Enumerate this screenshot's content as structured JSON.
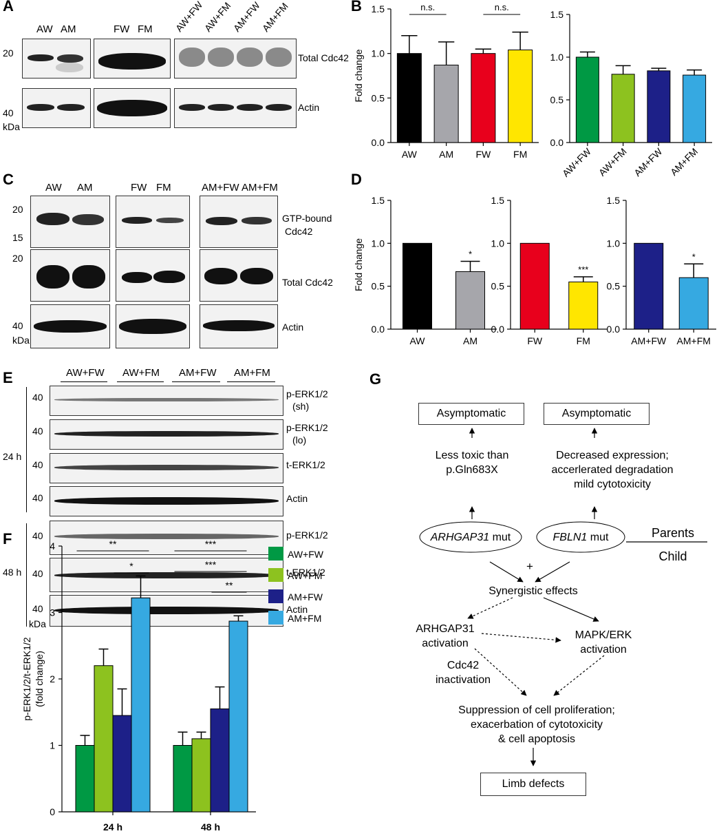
{
  "panels": {
    "a": "A",
    "b": "B",
    "c": "C",
    "d": "D",
    "e": "E",
    "f": "F",
    "g": "G"
  },
  "panel_a": {
    "lanes_1": [
      "AW",
      "AM"
    ],
    "lanes_2": [
      "FW",
      "FM"
    ],
    "lanes_3": [
      "AW+FW",
      "AW+FM",
      "AM+FW",
      "AM+FM"
    ],
    "mw_20": "20",
    "mw_40": "40",
    "kda": "kDa",
    "row_total": "Total Cdc42",
    "row_actin": "Actin"
  },
  "panel_c": {
    "lanes_1": [
      "AW",
      "AM"
    ],
    "lanes_2": [
      "FW",
      "FM"
    ],
    "lanes_3": [
      "AM+FW",
      "AM+FM"
    ],
    "mw_20a": "20",
    "mw_15": "15",
    "mw_20b": "20",
    "mw_40": "40",
    "kda": "kDa",
    "row_gtp_1": "GTP-bound",
    "row_gtp_2": "Cdc42",
    "row_total": "Total Cdc42",
    "row_actin": "Actin"
  },
  "panel_e": {
    "groups": [
      "AW+FW",
      "AW+FM",
      "AM+FW",
      "AM+FM"
    ],
    "time_24": "24 h",
    "time_48": "48 h",
    "mw": "40",
    "kda": "kDa",
    "rows_24": [
      "p-ERK1/2",
      "p-ERK1/2",
      "t-ERK1/2",
      "Actin"
    ],
    "rows_24_sub": [
      "(sh)",
      "(lo)",
      "",
      ""
    ],
    "rows_48": [
      "p-ERK1/2",
      "t-ERK1/2",
      "Actin"
    ]
  },
  "colors": {
    "AW": "#000000",
    "AM": "#a6a6ab",
    "FW": "#e8001c",
    "FM": "#ffe600",
    "AW+FW": "#009944",
    "AW+FM": "#8dc21f",
    "AM+FW": "#1d2088",
    "AM+FM": "#36a9e1"
  },
  "chart_data": [
    {
      "id": "B-left",
      "type": "bar",
      "categories": [
        "AW",
        "AM",
        "FW",
        "FM"
      ],
      "values": [
        1.0,
        0.87,
        1.0,
        1.04
      ],
      "errors": [
        0.2,
        0.26,
        0.05,
        0.2
      ],
      "ylabel": "Fold change",
      "ylim": [
        0,
        1.5
      ],
      "yticks": [
        "0.0",
        "0.5",
        "1.0",
        "1.5"
      ],
      "annotations": [
        "n.s.",
        "n.s."
      ]
    },
    {
      "id": "B-right",
      "type": "bar",
      "categories": [
        "AW+FW",
        "AW+FM",
        "AM+FW",
        "AM+FM"
      ],
      "values": [
        1.0,
        0.8,
        0.84,
        0.79
      ],
      "errors": [
        0.06,
        0.1,
        0.03,
        0.06
      ],
      "ylim": [
        0,
        1.5
      ],
      "yticks": [
        "0.0",
        "0.5",
        "1.0",
        "1.5"
      ]
    },
    {
      "id": "D-1",
      "type": "bar",
      "categories": [
        "AW",
        "AM"
      ],
      "values": [
        1.0,
        0.67
      ],
      "errors": [
        0,
        0.12
      ],
      "ylabel": "Fold change",
      "ylim": [
        0,
        1.5
      ],
      "yticks": [
        "0.0",
        "0.5",
        "1.0",
        "1.5"
      ],
      "stars": [
        "",
        "*"
      ]
    },
    {
      "id": "D-2",
      "type": "bar",
      "categories": [
        "FW",
        "FM"
      ],
      "values": [
        1.0,
        0.55
      ],
      "errors": [
        0,
        0.06
      ],
      "ylim": [
        0,
        1.5
      ],
      "yticks": [
        "0.0",
        "0.5",
        "1.0",
        "1.5"
      ],
      "stars": [
        "",
        "***"
      ]
    },
    {
      "id": "D-3",
      "type": "bar",
      "categories": [
        "AM+FW",
        "AM+FM"
      ],
      "values": [
        1.0,
        0.6
      ],
      "errors": [
        0,
        0.16
      ],
      "ylim": [
        0,
        1.5
      ],
      "yticks": [
        "0.0",
        "0.5",
        "1.0",
        "1.5"
      ],
      "stars": [
        "",
        "*"
      ]
    },
    {
      "id": "F",
      "type": "bar",
      "categories": [
        "24 h",
        "48 h"
      ],
      "series": [
        {
          "name": "AW+FW",
          "values": [
            1.0,
            1.0
          ],
          "errors": [
            0.15,
            0.2
          ]
        },
        {
          "name": "AW+FM",
          "values": [
            2.2,
            1.1
          ],
          "errors": [
            0.25,
            0.1
          ]
        },
        {
          "name": "AM+FW",
          "values": [
            1.45,
            1.55
          ],
          "errors": [
            0.4,
            0.33
          ]
        },
        {
          "name": "AM+FM",
          "values": [
            3.22,
            2.87
          ],
          "errors": [
            0.33,
            0.08
          ]
        }
      ],
      "ylabel_1": "p-ERK1/2/t-ERK1/2",
      "ylabel_2": "(fold change)",
      "ylim": [
        0,
        4
      ],
      "yticks": [
        "0",
        "1",
        "2",
        "3",
        "4"
      ],
      "legend": "right",
      "significance": {
        "24 h": [
          "**",
          "*"
        ],
        "48 h": [
          "***",
          "***",
          "**"
        ]
      }
    }
  ],
  "panel_g": {
    "asym_left": "Asymptomatic",
    "asym_right": "Asymptomatic",
    "less_toxic_1": "Less toxic than",
    "less_toxic_2": "p.Gln683X",
    "decreased_1": "Decreased expression;",
    "decreased_2": "accerlerated degradation",
    "decreased_3": "mild cytotoxicity",
    "gene1": "ARHGAP31",
    "gene2": "FBLN1",
    "mut": "mut",
    "parents": "Parents",
    "child": "Child",
    "plus": "+",
    "synergy": "Synergistic effects",
    "arhgap_act_1": "ARHGAP31",
    "arhgap_act_2": "activation",
    "mapk_1": "MAPK/ERK",
    "mapk_2": "activation",
    "cdc42_1": "Cdc42",
    "cdc42_2": "inactivation",
    "supp_1": "Suppression of cell proliferation;",
    "supp_2": "exacerbation of cytotoxicity",
    "supp_3": "& cell apoptosis",
    "limb": "Limb defects"
  }
}
